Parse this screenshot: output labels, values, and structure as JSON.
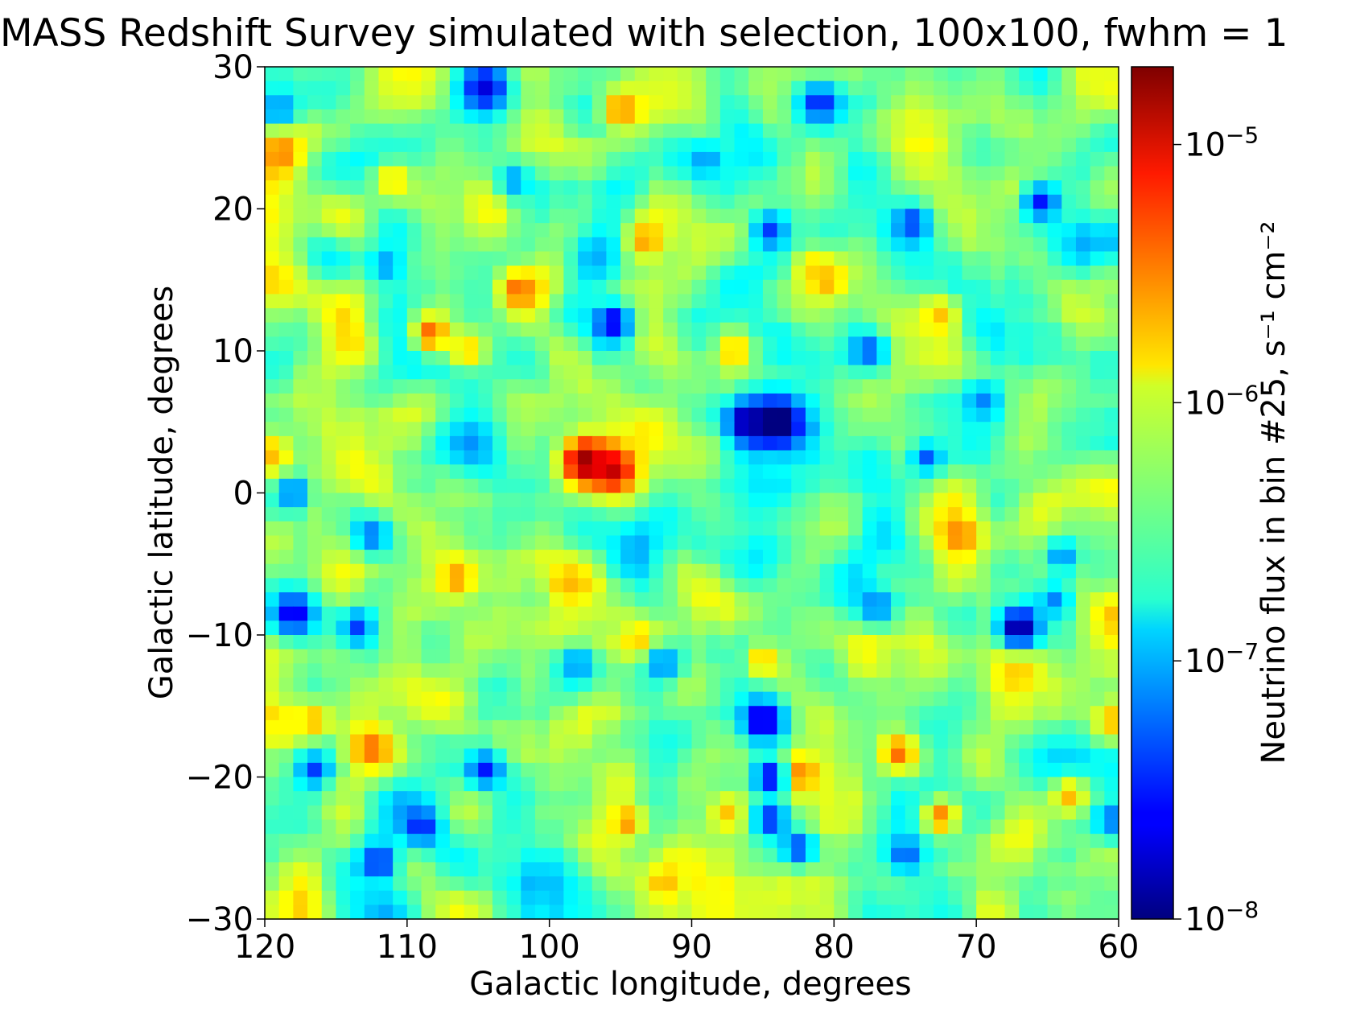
{
  "chart_data": {
    "type": "heatmap",
    "title": "MASS Redshift Survey simulated with selection, 100x100, fwhm = 1",
    "xlabel": "Galactic longitude, degrees",
    "ylabel": "Galactic latitude, degrees",
    "xlim": [
      120,
      60
    ],
    "ylim": [
      -30,
      30
    ],
    "x_ticks": [
      120,
      110,
      100,
      90,
      80,
      70,
      60
    ],
    "y_ticks": [
      30,
      20,
      10,
      0,
      -10,
      -20,
      -30
    ],
    "grid": false,
    "colormap": "jet",
    "color_scale": "log",
    "grid_size": [
      60,
      60
    ],
    "colorbar": {
      "label": "Neutrino flux in bin #25, s⁻¹ cm⁻²",
      "range": [
        1e-08,
        2e-05
      ],
      "ticks": [
        {
          "base": "10",
          "exp": "−5",
          "value": 1e-05
        },
        {
          "base": "10",
          "exp": "−6",
          "value": 1e-06
        },
        {
          "base": "10",
          "exp": "−7",
          "value": 1e-07
        },
        {
          "base": "10",
          "exp": "−8",
          "value": 1e-08
        }
      ]
    },
    "baseline_flux": 4e-07,
    "features": [
      {
        "l": 97.5,
        "b": 2.2,
        "flux": 1.8e-05,
        "sigma": 1.3
      },
      {
        "l": 95.5,
        "b": 1.6,
        "flux": 1.2e-05,
        "sigma": 1.1
      },
      {
        "l": 108.3,
        "b": 11.2,
        "flux": 4e-06,
        "sigma": 1.0
      },
      {
        "l": 102.2,
        "b": 14.3,
        "flux": 3.5e-06,
        "sigma": 1.0
      },
      {
        "l": 112.5,
        "b": -18.0,
        "flux": 3.5e-06,
        "sigma": 1.3
      },
      {
        "l": 82.5,
        "b": -19.8,
        "flux": 4e-06,
        "sigma": 1.0
      },
      {
        "l": 75.5,
        "b": -18.3,
        "flux": 3.5e-06,
        "sigma": 1.0
      },
      {
        "l": 72.5,
        "b": -22.8,
        "flux": 3e-06,
        "sigma": 1.0
      },
      {
        "l": 71.2,
        "b": -3.0,
        "flux": 3e-06,
        "sigma": 1.0
      },
      {
        "l": 118.8,
        "b": 24.0,
        "flux": 3e-06,
        "sigma": 1.0
      },
      {
        "l": 95.0,
        "b": 27.0,
        "flux": 3e-06,
        "sigma": 1.0
      },
      {
        "l": 93.2,
        "b": 17.8,
        "flux": 2.5e-06,
        "sigma": 1.0
      },
      {
        "l": 80.5,
        "b": 15.0,
        "flux": 2.5e-06,
        "sigma": 1.0
      },
      {
        "l": 106.5,
        "b": -6.0,
        "flux": 2.5e-06,
        "sigma": 1.0
      },
      {
        "l": 94.5,
        "b": -23.2,
        "flux": 2.5e-06,
        "sigma": 1.0
      },
      {
        "l": 93.5,
        "b": -10.5,
        "flux": 2.2e-06,
        "sigma": 0.9
      },
      {
        "l": 85.0,
        "b": -11.8,
        "flux": 2e-06,
        "sigma": 0.9
      },
      {
        "l": 87.0,
        "b": 10.0,
        "flux": 2e-06,
        "sigma": 0.9
      },
      {
        "l": 116.5,
        "b": -16.0,
        "flux": 2e-06,
        "sigma": 0.9
      },
      {
        "l": 60.5,
        "b": -16.0,
        "flux": 2e-06,
        "sigma": 0.9
      },
      {
        "l": 119.5,
        "b": 2.8,
        "flux": 2e-06,
        "sigma": 0.9
      },
      {
        "l": 98.8,
        "b": -6.5,
        "flux": 2e-06,
        "sigma": 1.0
      },
      {
        "l": 63.5,
        "b": -21.3,
        "flux": 2e-06,
        "sigma": 0.9
      },
      {
        "l": 92.0,
        "b": -27.5,
        "flux": 2e-06,
        "sigma": 0.9
      },
      {
        "l": 72.5,
        "b": 12.5,
        "flux": 1.8e-06,
        "sigma": 0.9
      },
      {
        "l": 105.8,
        "b": 10.0,
        "flux": 1.8e-06,
        "sigma": 0.9
      },
      {
        "l": 87.5,
        "b": -22.5,
        "flux": 1.8e-06,
        "sigma": 0.9
      },
      {
        "l": 111.0,
        "b": 22.0,
        "flux": 1.6e-06,
        "sigma": 1.0
      },
      {
        "l": 81.5,
        "b": 15.8,
        "flux": 1.6e-06,
        "sigma": 1.1
      },
      {
        "l": 84.0,
        "b": 5.0,
        "flux": 6e-09,
        "sigma": 1.3
      },
      {
        "l": 86.0,
        "b": 5.0,
        "flux": 1e-08,
        "sigma": 1.0
      },
      {
        "l": 67.0,
        "b": -9.5,
        "flux": 1e-08,
        "sigma": 1.1
      },
      {
        "l": 85.0,
        "b": -16.0,
        "flux": 1.5e-08,
        "sigma": 1.1
      },
      {
        "l": 84.5,
        "b": -20.0,
        "flux": 2e-08,
        "sigma": 0.9
      },
      {
        "l": 84.5,
        "b": -23.0,
        "flux": 3e-08,
        "sigma": 0.9
      },
      {
        "l": 104.5,
        "b": 28.5,
        "flux": 2e-08,
        "sigma": 1.2
      },
      {
        "l": 95.5,
        "b": 12.0,
        "flux": 2e-08,
        "sigma": 1.0
      },
      {
        "l": 118.0,
        "b": -8.5,
        "flux": 2e-08,
        "sigma": 1.1
      },
      {
        "l": 113.5,
        "b": -9.5,
        "flux": 4e-08,
        "sigma": 0.9
      },
      {
        "l": 104.5,
        "b": -19.5,
        "flux": 3e-08,
        "sigma": 1.0
      },
      {
        "l": 112.0,
        "b": -26.0,
        "flux": 3e-08,
        "sigma": 1.0
      },
      {
        "l": 109.0,
        "b": -23.5,
        "flux": 3e-08,
        "sigma": 1.0
      },
      {
        "l": 81.0,
        "b": 27.5,
        "flux": 3e-08,
        "sigma": 1.0
      },
      {
        "l": 65.5,
        "b": 20.5,
        "flux": 3e-08,
        "sigma": 1.0
      },
      {
        "l": 74.5,
        "b": 19.0,
        "flux": 4e-08,
        "sigma": 1.0
      },
      {
        "l": 84.5,
        "b": 18.5,
        "flux": 4e-08,
        "sigma": 1.0
      },
      {
        "l": 116.5,
        "b": -19.5,
        "flux": 4e-08,
        "sigma": 0.9
      },
      {
        "l": 82.5,
        "b": -25.0,
        "flux": 4e-08,
        "sigma": 0.9
      },
      {
        "l": 75.0,
        "b": -25.5,
        "flux": 5e-08,
        "sigma": 0.9
      },
      {
        "l": 60.5,
        "b": -23.0,
        "flux": 6e-08,
        "sigma": 0.9
      },
      {
        "l": 119.0,
        "b": 27.0,
        "flux": 6e-08,
        "sigma": 0.9
      },
      {
        "l": 118.0,
        "b": 0.0,
        "flux": 5e-08,
        "sigma": 0.9
      },
      {
        "l": 73.5,
        "b": 2.5,
        "flux": 5e-08,
        "sigma": 0.9
      },
      {
        "l": 77.5,
        "b": 10.0,
        "flux": 5e-08,
        "sigma": 0.9
      },
      {
        "l": 112.5,
        "b": -3.0,
        "flux": 6e-08,
        "sigma": 0.9
      },
      {
        "l": 92.0,
        "b": -12.0,
        "flux": 6e-08,
        "sigma": 1.0
      },
      {
        "l": 98.0,
        "b": -12.0,
        "flux": 7e-08,
        "sigma": 0.9
      },
      {
        "l": 77.0,
        "b": -8.0,
        "flux": 6e-08,
        "sigma": 0.9
      },
      {
        "l": 69.5,
        "b": 6.5,
        "flux": 7e-08,
        "sigma": 1.0
      },
      {
        "l": 64.0,
        "b": -4.5,
        "flux": 7e-08,
        "sigma": 0.9
      },
      {
        "l": 64.5,
        "b": -7.5,
        "flux": 7e-08,
        "sigma": 0.9
      },
      {
        "l": 111.5,
        "b": 16.0,
        "flux": 8e-08,
        "sigma": 1.0
      },
      {
        "l": 102.5,
        "b": 22.0,
        "flux": 8e-08,
        "sigma": 0.9
      },
      {
        "l": 89.0,
        "b": 23.5,
        "flux": 8e-08,
        "sigma": 0.9
      }
    ]
  }
}
